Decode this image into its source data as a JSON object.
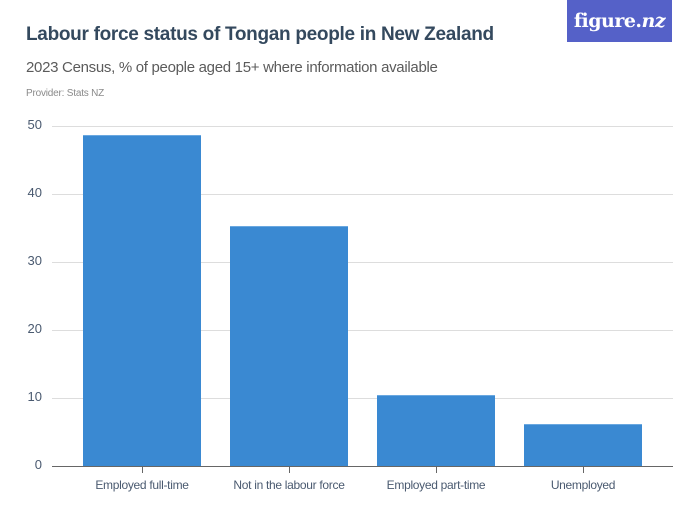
{
  "header": {
    "title": "Labour force status of Tongan people in New Zealand",
    "subtitle": "2023 Census, % of people aged 15+ where information available",
    "provider": "Provider: Stats NZ"
  },
  "logo": {
    "text_main": "figure.",
    "text_nz": "nz",
    "bg_color": "#5561c8"
  },
  "chart_data": {
    "type": "bar",
    "title": "Labour force status of Tongan people in New Zealand",
    "subtitle": "2023 Census, % of people aged 15+ where information available",
    "xlabel": "",
    "ylabel": "",
    "categories": [
      "Employed full-time",
      "Not in the labour force",
      "Employed part-time",
      "Unemployed"
    ],
    "values": [
      48.6,
      35.2,
      10.4,
      6.1
    ],
    "ylim": [
      0,
      50
    ],
    "yticks": [
      0,
      10,
      20,
      30,
      40,
      50
    ],
    "grid": true,
    "legend": null,
    "bar_color": "#3a89d2"
  },
  "yticks": [
    "50",
    "40",
    "30",
    "20",
    "10",
    "0"
  ]
}
